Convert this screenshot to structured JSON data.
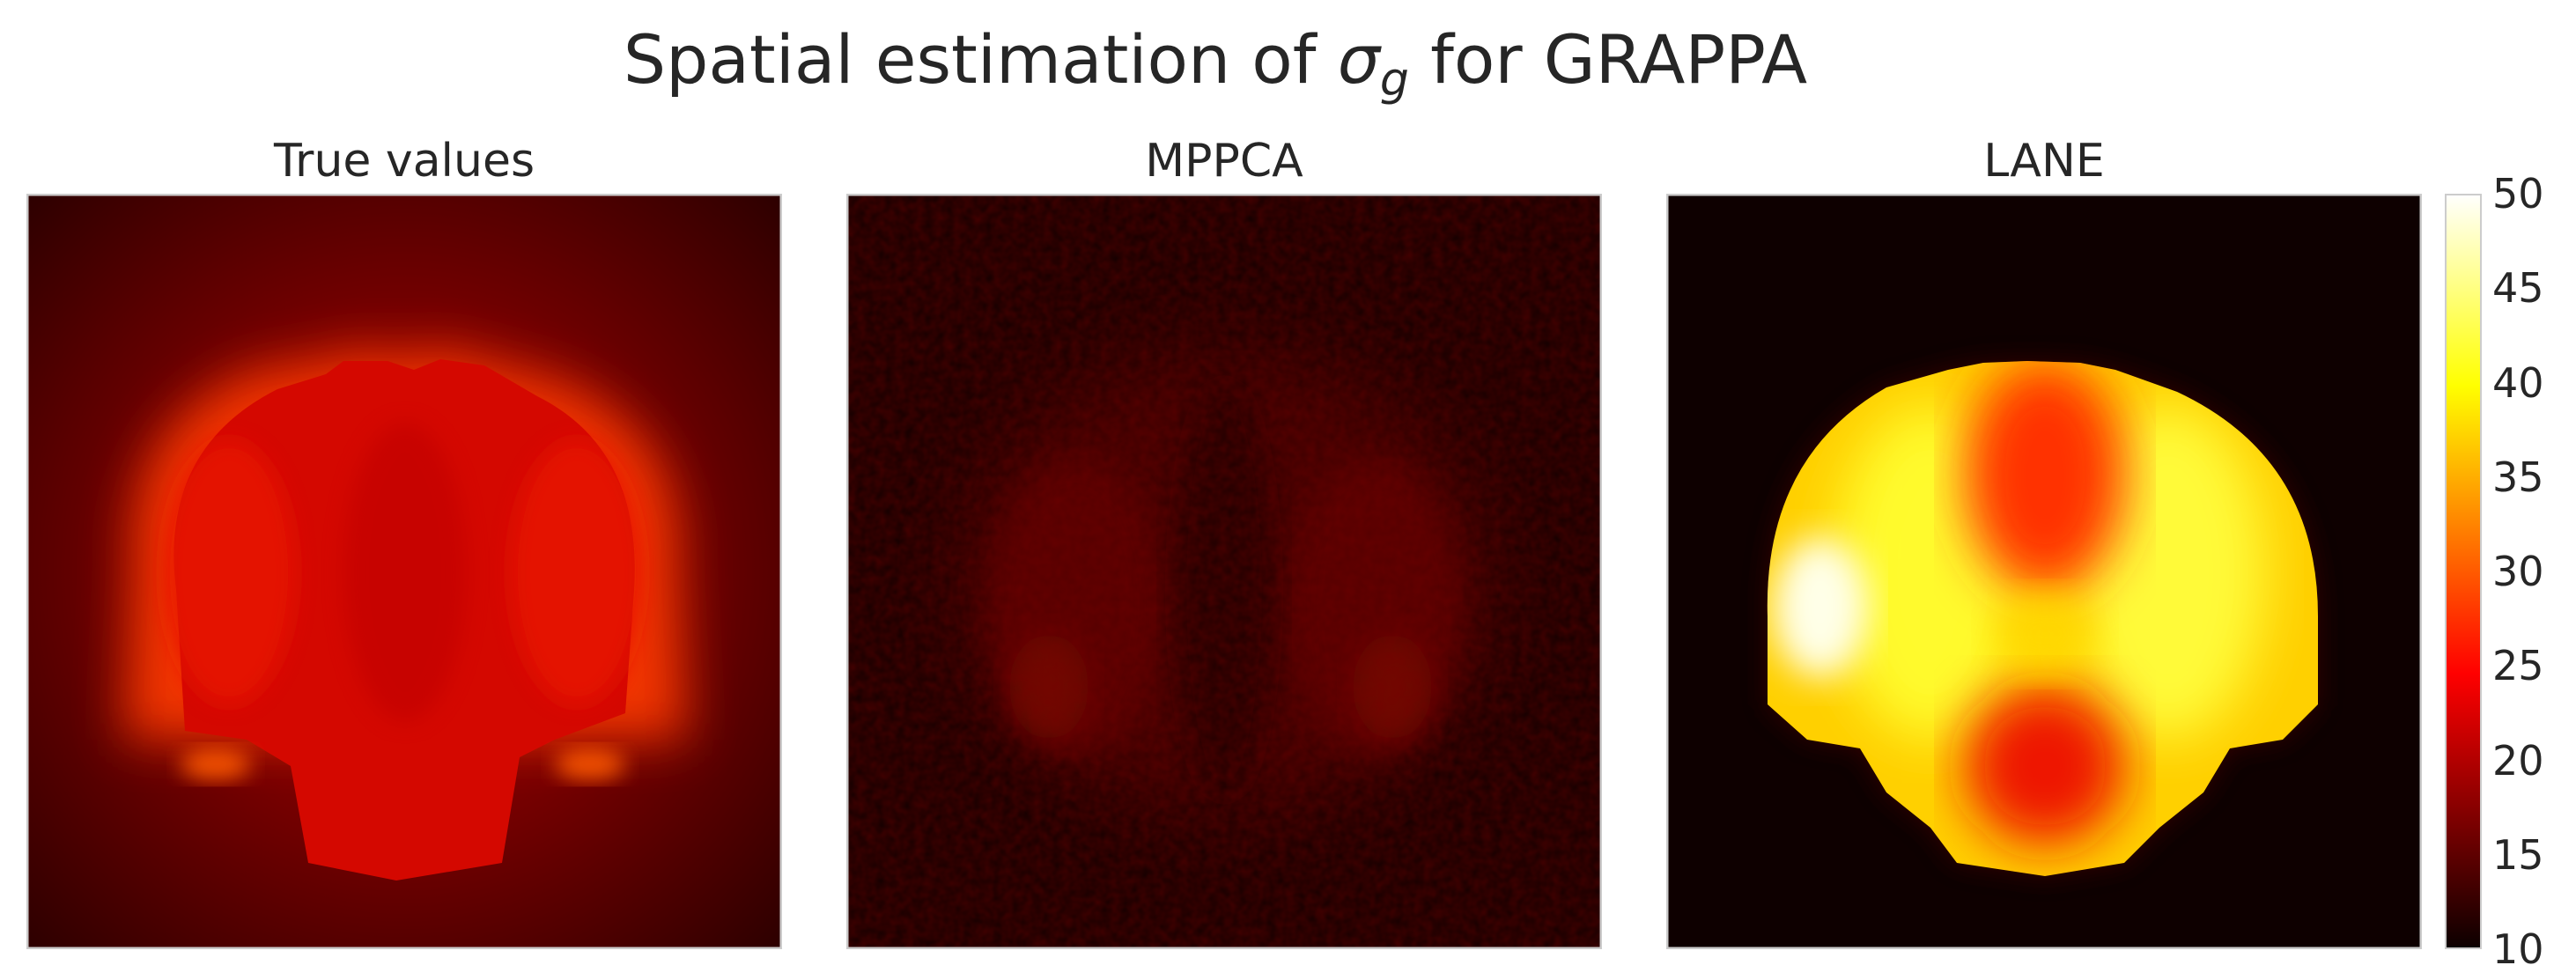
{
  "figure": {
    "title_prefix": "Spatial estimation of ",
    "title_symbol": "σ",
    "title_subscript": "g",
    "title_suffix": " for GRAPPA"
  },
  "chart_data": {
    "type": "heatmap",
    "panels": [
      {
        "title": "True values"
      },
      {
        "title": "MPPCA"
      },
      {
        "title": "LANE"
      }
    ],
    "colorbar": {
      "colormap": "hot",
      "range": [
        10,
        50
      ],
      "ticks": [
        "10",
        "15",
        "20",
        "25",
        "30",
        "35",
        "40",
        "45",
        "50"
      ]
    },
    "grid": false
  }
}
